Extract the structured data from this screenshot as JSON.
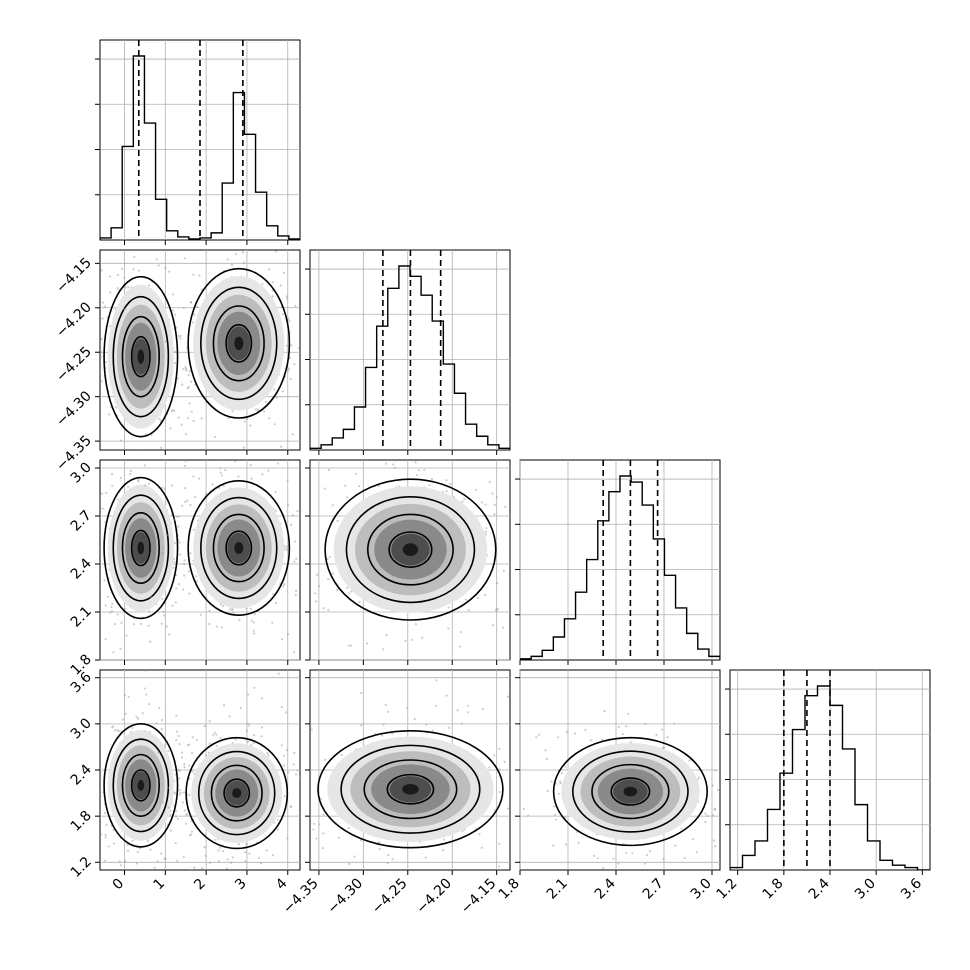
{
  "chart_data": {
    "type": "corner",
    "parameters": [
      {
        "range": [
          -0.6,
          4.3
        ],
        "ticks": [
          "0",
          "1",
          "2",
          "3",
          "4"
        ],
        "tick_values": [
          0,
          1,
          2,
          3,
          4
        ]
      },
      {
        "range": [
          -4.36,
          -4.135
        ],
        "ticks": [
          "−4.35",
          "−4.30",
          "−4.25",
          "−4.20",
          "−4.15"
        ],
        "tick_values": [
          -4.35,
          -4.3,
          -4.25,
          -4.2,
          -4.15
        ]
      },
      {
        "range": [
          1.8,
          3.05
        ],
        "ticks": [
          "1.8",
          "2.1",
          "2.4",
          "2.7",
          "3.0"
        ],
        "tick_values": [
          1.8,
          2.1,
          2.4,
          2.7,
          3.0
        ]
      },
      {
        "range": [
          1.1,
          3.7
        ],
        "ticks": [
          "1.2",
          "1.8",
          "2.4",
          "3.0",
          "3.6"
        ],
        "tick_values": [
          1.2,
          1.8,
          2.4,
          3.0,
          3.6
        ]
      }
    ],
    "quantiles": [
      [
        0.35,
        1.85,
        2.9
      ],
      [
        -4.278,
        -4.247,
        -4.213
      ],
      [
        2.32,
        2.49,
        2.66
      ],
      [
        1.8,
        2.1,
        2.4
      ]
    ],
    "histograms": [
      [
        2,
        12,
        92,
        181,
        115,
        40,
        9,
        3,
        1,
        2,
        7,
        56,
        145,
        104,
        47,
        14,
        4,
        1
      ],
      [
        1,
        3,
        7,
        12,
        25,
        48,
        72,
        94,
        107,
        101,
        90,
        75,
        50,
        33,
        15,
        8,
        3,
        1
      ],
      [
        1,
        3,
        8,
        19,
        34,
        56,
        83,
        115,
        139,
        152,
        147,
        128,
        100,
        70,
        43,
        22,
        9,
        3
      ],
      [
        1,
        6,
        12,
        25,
        40,
        58,
        72,
        76,
        68,
        50,
        27,
        12,
        4,
        2,
        1,
        0
      ]
    ],
    "contours": [
      {
        "row": 1,
        "col": 0,
        "x": 0.4,
        "y": -4.255,
        "sx": 0.45,
        "sy": 0.045,
        "second": {
          "x": 2.8,
          "y": -4.24,
          "sx": 0.62,
          "sy": 0.042
        }
      },
      {
        "row": 2,
        "col": 0,
        "x": 0.4,
        "y": 2.5,
        "sx": 0.45,
        "sy": 0.22,
        "second": {
          "x": 2.8,
          "y": 2.5,
          "sx": 0.62,
          "sy": 0.21
        }
      },
      {
        "row": 3,
        "col": 0,
        "x": 0.4,
        "y": 2.2,
        "sx": 0.45,
        "sy": 0.4,
        "second": {
          "x": 2.75,
          "y": 2.1,
          "sx": 0.62,
          "sy": 0.36
        }
      },
      {
        "row": 2,
        "col": 1,
        "x": -4.247,
        "y": 2.49,
        "sx": 0.048,
        "sy": 0.22
      },
      {
        "row": 3,
        "col": 1,
        "x": -4.247,
        "y": 2.15,
        "sx": 0.052,
        "sy": 0.38
      },
      {
        "row": 3,
        "col": 2,
        "x": 2.49,
        "y": 2.12,
        "sx": 0.24,
        "sy": 0.35
      }
    ],
    "grid": true
  }
}
